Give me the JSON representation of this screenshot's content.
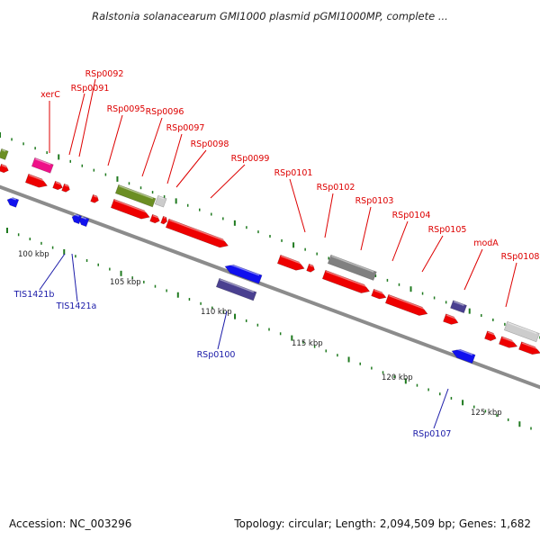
{
  "title": "Ralstonia solanacearum GMI1000 plasmid pGMI1000MP, complete ...",
  "footer": {
    "accession": "Accession: NC_003296",
    "summary": "Topology: circular; Length: 2,094,509 bp; Genes: 1,682"
  },
  "colors": {
    "backbone": "#8c8c8c",
    "tick": "#1f7a1f",
    "forward_gene": "#ee0000",
    "reverse_gene": "#1111ee",
    "forward_label": "#dd0000",
    "reverse_label": "#1a1aa8",
    "olive": "#6b8e23",
    "magenta": "#ee1188",
    "grey": "#808080",
    "light_grey": "#cccccc",
    "slate": "#4a4090"
  },
  "kbp_labels": [
    "100 kbp",
    "105 kbp",
    "110 kbp",
    "115 kbp",
    "120 kbp",
    "125 kbp"
  ],
  "forward_labels": [
    "xerC",
    "RSp0091",
    "RSp0092",
    "RSp0095",
    "RSp0096",
    "RSp0097",
    "RSp0098",
    "RSp0099",
    "RSp0101",
    "RSp0102",
    "RSp0103",
    "RSp0104",
    "RSp0105",
    "modA",
    "RSp0108"
  ],
  "reverse_labels": [
    "TIS1421b",
    "TIS1421a",
    "RSp0100",
    "RSp0107"
  ]
}
